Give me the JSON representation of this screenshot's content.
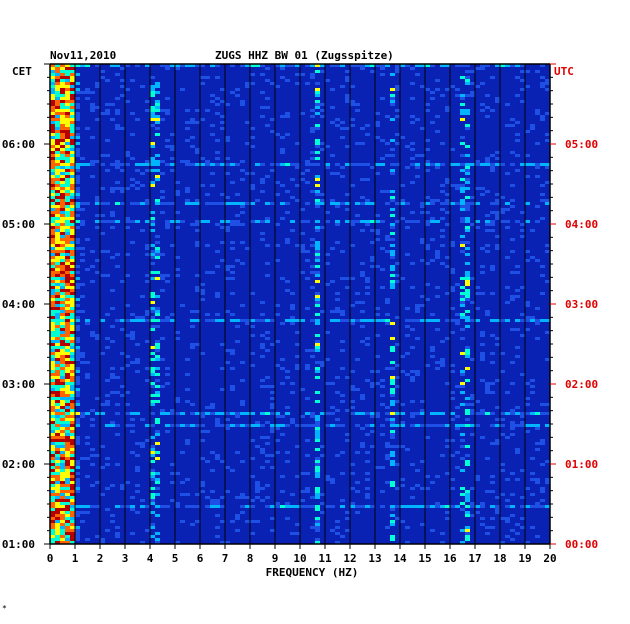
{
  "header": {
    "date": "Nov11,2010",
    "title": "ZUGS HHZ BW 01 (Zugsspitze)",
    "left_tz": "CET",
    "right_tz": "UTC"
  },
  "footer_mark": "*",
  "colors": {
    "background": "#0a22b4",
    "utc_text": "#e00000",
    "text": "#000000",
    "grid": "#000000"
  },
  "chart_data": {
    "type": "heatmap",
    "title": "ZUGS HHZ BW 01 (Zugsspitze)",
    "xlabel": "FREQUENCY (HZ)",
    "xlim": [
      0,
      20
    ],
    "x_ticks": [
      "0",
      "1",
      "2",
      "3",
      "4",
      "5",
      "6",
      "7",
      "8",
      "9",
      "10",
      "11",
      "12",
      "13",
      "14",
      "15",
      "16",
      "17",
      "18",
      "19",
      "20"
    ],
    "y_left_label": "CET",
    "y_right_label": "UTC",
    "y_left_ticks": [
      "06:00",
      "05:00",
      "04:00",
      "03:00",
      "02:00",
      "01:00"
    ],
    "y_right_ticks": [
      "05:00",
      "04:00",
      "03:00",
      "02:00",
      "01:00",
      "00:00"
    ],
    "colormap": [
      "#00008c",
      "#0a22b4",
      "#1e50e6",
      "#00b4ff",
      "#00ffd2",
      "#ffff00",
      "#ff6400",
      "#b40000"
    ],
    "features": [
      {
        "desc": "strong low-frequency microseism band",
        "freq_range_hz": [
          0.1,
          0.9
        ]
      },
      {
        "desc": "persistent spectral line",
        "freq_hz": 10.7
      },
      {
        "desc": "intermittent spectral line",
        "freq_hz": 13.7
      },
      {
        "desc": "weak spectral line",
        "freq_hz": 4.2
      },
      {
        "desc": "weak spectral line",
        "freq_hz": 16.6
      }
    ]
  }
}
